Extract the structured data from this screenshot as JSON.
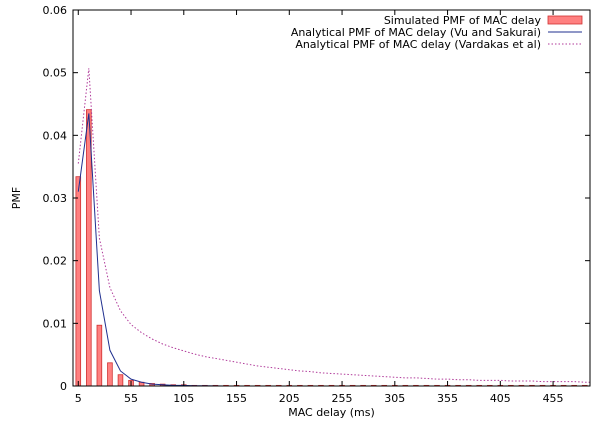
{
  "chart_data": {
    "type": "bar",
    "title": "",
    "xlabel": "MAC delay (ms)",
    "ylabel": "PMF",
    "xlim": [
      0,
      490
    ],
    "ylim": [
      0,
      0.06
    ],
    "grid": false,
    "legend_position": "top-right",
    "xticks": [
      5,
      55,
      105,
      155,
      205,
      255,
      305,
      355,
      405,
      455
    ],
    "yticks": [
      0,
      0.01,
      0.02,
      0.03,
      0.04,
      0.05,
      0.06
    ],
    "ytick_labels": [
      "0",
      "0.01",
      "0.02",
      "0.03",
      "0.04",
      "0.05",
      "0.06"
    ],
    "series": [
      {
        "name": "Simulated PMF of MAC delay",
        "kind": "bar",
        "color": "#ff8080",
        "edge_color": "#d03030",
        "bar_width": 4.5,
        "x": [
          5,
          15,
          25,
          35,
          45,
          55,
          65,
          75,
          85,
          95,
          105,
          115,
          125,
          135,
          145,
          155,
          165,
          175,
          185,
          195,
          205,
          215,
          225,
          235,
          245,
          255,
          265,
          275,
          285,
          295,
          305,
          315,
          325,
          335,
          345,
          355,
          365,
          375,
          385,
          395,
          405,
          415,
          425,
          435,
          445,
          455,
          465,
          475,
          485
        ],
        "values": [
          0.0334,
          0.0441,
          0.0097,
          0.0037,
          0.0018,
          0.0009,
          0.0006,
          0.0004,
          0.0003,
          0.0002,
          0.0002,
          0.0001,
          0.0001,
          0.0001,
          0.0001,
          0.0001,
          0.0001,
          0.0001,
          0.0001,
          0.0001,
          0.0001,
          0.0001,
          0.0001,
          0.0001,
          0.0001,
          0.0001,
          0.0001,
          0.0001,
          0.0001,
          0.0001,
          0.0001,
          0.0001,
          0.0001,
          0.0001,
          0.0001,
          0.0001,
          0.0001,
          0.0001,
          0.0001,
          0.0001,
          0.0001,
          0.0001,
          0.0001,
          0.0001,
          0.0001,
          0.0001,
          0.0001,
          0.0001,
          0.0001
        ]
      },
      {
        "name": "Analytical PMF of MAC delay (Vu and Sakurai)",
        "kind": "line",
        "color": "#1f2f8f",
        "dash": "",
        "x": [
          5,
          15,
          25,
          35,
          45,
          55,
          65,
          75,
          85,
          95,
          105,
          115,
          125,
          135,
          145,
          155,
          205,
          255,
          305,
          355,
          405,
          455,
          490
        ],
        "values": [
          0.031,
          0.0435,
          0.0152,
          0.0057,
          0.0024,
          0.0011,
          0.0006,
          0.0003,
          0.0002,
          0.0001,
          0.0001,
          5e-05,
          3e-05,
          2e-05,
          1e-05,
          1e-05,
          0.0,
          0.0,
          0.0,
          0.0,
          0.0,
          0.0,
          0.0
        ]
      },
      {
        "name": "Analytical PMF of MAC delay (Vardakas et al)",
        "kind": "line",
        "color": "#b03a9a",
        "dash": "1.5,2",
        "x": [
          5,
          15,
          25,
          35,
          45,
          55,
          65,
          75,
          85,
          95,
          105,
          115,
          125,
          135,
          145,
          155,
          165,
          175,
          185,
          195,
          205,
          215,
          225,
          235,
          245,
          255,
          265,
          275,
          285,
          295,
          305,
          315,
          325,
          335,
          345,
          355,
          365,
          375,
          385,
          395,
          405,
          415,
          425,
          435,
          445,
          455,
          465,
          475,
          485,
          490
        ],
        "values": [
          0.0355,
          0.0507,
          0.0236,
          0.0157,
          0.012,
          0.0098,
          0.0085,
          0.0075,
          0.0067,
          0.0061,
          0.0056,
          0.0051,
          0.0047,
          0.0044,
          0.0041,
          0.0038,
          0.0035,
          0.0032,
          0.003,
          0.0028,
          0.0026,
          0.0024,
          0.0023,
          0.0021,
          0.002,
          0.0019,
          0.0018,
          0.0017,
          0.0016,
          0.0015,
          0.0014,
          0.0013,
          0.0013,
          0.0012,
          0.0011,
          0.0011,
          0.001,
          0.001,
          0.0009,
          0.0009,
          0.0009,
          0.0008,
          0.0008,
          0.0008,
          0.0007,
          0.0007,
          0.0007,
          0.0007,
          0.0006,
          0.0006
        ]
      }
    ]
  }
}
